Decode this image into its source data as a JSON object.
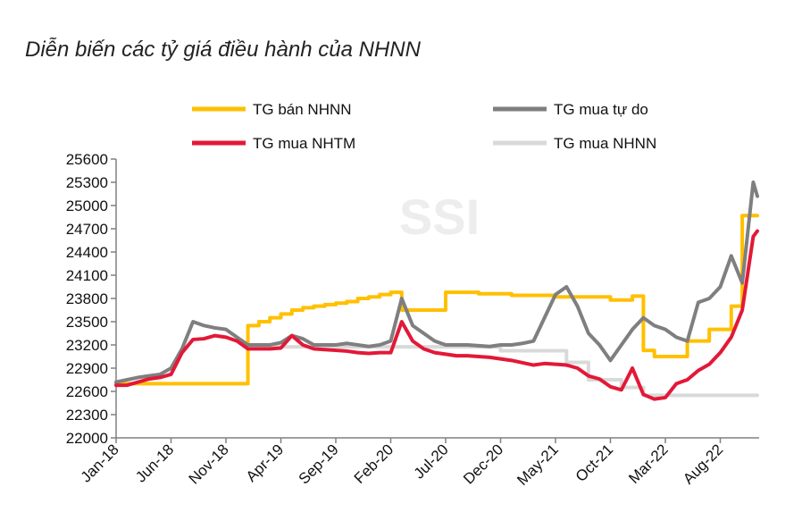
{
  "title": "Diễn biến các tỷ giá điều hành của NHNN",
  "watermark": "SSI",
  "chart_data": {
    "type": "line",
    "title": "Diễn biến các tỷ giá điều hành của NHNN",
    "xlabel": "",
    "ylabel": "",
    "ylim": [
      22000,
      25600
    ],
    "xlim": [
      "2018-01",
      "2022-12"
    ],
    "yticks": [
      "25600",
      "25300",
      "25000",
      "24700",
      "24400",
      "24100",
      "23800",
      "23500",
      "23200",
      "22900",
      "22600",
      "22300",
      "22000"
    ],
    "xticks": [
      {
        "label": "Jan-18",
        "date": "2018-01"
      },
      {
        "label": "Jun-18",
        "date": "2018-06"
      },
      {
        "label": "Nov-18",
        "date": "2018-11"
      },
      {
        "label": "Apr-19",
        "date": "2019-04"
      },
      {
        "label": "Sep-19",
        "date": "2019-09"
      },
      {
        "label": "Feb-20",
        "date": "2020-02"
      },
      {
        "label": "Jul-20",
        "date": "2020-07"
      },
      {
        "label": "Dec-20",
        "date": "2020-12"
      },
      {
        "label": "May-21",
        "date": "2021-05"
      },
      {
        "label": "Oct-21",
        "date": "2021-10"
      },
      {
        "label": "Mar-22",
        "date": "2022-03"
      },
      {
        "label": "Aug-22",
        "date": "2022-08"
      }
    ],
    "grid": false,
    "legend_position": "top",
    "series": [
      {
        "name": "TG bán NHNN",
        "color": "#FFC000",
        "step": true,
        "points": [
          [
            "2018-01",
            22700
          ],
          [
            "2019-01",
            23450
          ],
          [
            "2019-02",
            23500
          ],
          [
            "2019-03",
            23550
          ],
          [
            "2019-04",
            23600
          ],
          [
            "2019-05",
            23650
          ],
          [
            "2019-06",
            23680
          ],
          [
            "2019-07",
            23700
          ],
          [
            "2019-08",
            23720
          ],
          [
            "2019-09",
            23740
          ],
          [
            "2019-10",
            23760
          ],
          [
            "2019-11",
            23800
          ],
          [
            "2019-12",
            23820
          ],
          [
            "2020-01",
            23850
          ],
          [
            "2020-02",
            23880
          ],
          [
            "2020-03",
            23650
          ],
          [
            "2020-07",
            23880
          ],
          [
            "2020-10",
            23860
          ],
          [
            "2021-01",
            23840
          ],
          [
            "2021-05",
            23820
          ],
          [
            "2021-10",
            23780
          ],
          [
            "2021-12",
            23830
          ],
          [
            "2022-01",
            23130
          ],
          [
            "2022-02",
            23050
          ],
          [
            "2022-05",
            23250
          ],
          [
            "2022-07",
            23400
          ],
          [
            "2022-09",
            23700
          ],
          [
            "2022-10",
            24870
          ],
          [
            "2022-12",
            24870
          ]
        ]
      },
      {
        "name": "TG mua tự do",
        "color": "#7F7F7F",
        "step": false,
        "points": [
          [
            "2018-01",
            22720
          ],
          [
            "2018-02",
            22750
          ],
          [
            "2018-03",
            22780
          ],
          [
            "2018-04",
            22800
          ],
          [
            "2018-05",
            22820
          ],
          [
            "2018-06",
            22900
          ],
          [
            "2018-07",
            23150
          ],
          [
            "2018-08",
            23500
          ],
          [
            "2018-09",
            23450
          ],
          [
            "2018-10",
            23420
          ],
          [
            "2018-11",
            23400
          ],
          [
            "2018-12",
            23300
          ],
          [
            "2019-01",
            23200
          ],
          [
            "2019-02",
            23200
          ],
          [
            "2019-03",
            23200
          ],
          [
            "2019-04",
            23230
          ],
          [
            "2019-05",
            23320
          ],
          [
            "2019-06",
            23280
          ],
          [
            "2019-07",
            23200
          ],
          [
            "2019-08",
            23200
          ],
          [
            "2019-09",
            23200
          ],
          [
            "2019-10",
            23220
          ],
          [
            "2019-11",
            23200
          ],
          [
            "2019-12",
            23180
          ],
          [
            "2020-01",
            23200
          ],
          [
            "2020-02",
            23250
          ],
          [
            "2020-03",
            23800
          ],
          [
            "2020-04",
            23450
          ],
          [
            "2020-05",
            23350
          ],
          [
            "2020-06",
            23250
          ],
          [
            "2020-07",
            23200
          ],
          [
            "2020-08",
            23200
          ],
          [
            "2020-09",
            23200
          ],
          [
            "2020-10",
            23190
          ],
          [
            "2020-11",
            23180
          ],
          [
            "2020-12",
            23200
          ],
          [
            "2021-01",
            23200
          ],
          [
            "2021-02",
            23220
          ],
          [
            "2021-03",
            23250
          ],
          [
            "2021-04",
            23550
          ],
          [
            "2021-05",
            23850
          ],
          [
            "2021-06",
            23950
          ],
          [
            "2021-07",
            23700
          ],
          [
            "2021-08",
            23350
          ],
          [
            "2021-09",
            23200
          ],
          [
            "2021-10",
            23000
          ],
          [
            "2021-11",
            23200
          ],
          [
            "2021-12",
            23400
          ],
          [
            "2022-01",
            23550
          ],
          [
            "2022-02",
            23450
          ],
          [
            "2022-03",
            23400
          ],
          [
            "2022-04",
            23300
          ],
          [
            "2022-05",
            23250
          ],
          [
            "2022-06",
            23750
          ],
          [
            "2022-07",
            23800
          ],
          [
            "2022-08",
            23950
          ],
          [
            "2022-09",
            24350
          ],
          [
            "2022-10",
            24000
          ],
          [
            "2022-11",
            25300
          ],
          [
            "2022-12",
            25120
          ]
        ]
      },
      {
        "name": "TG mua NHTM",
        "color": "#E31837",
        "step": false,
        "points": [
          [
            "2018-01",
            22680
          ],
          [
            "2018-02",
            22680
          ],
          [
            "2018-03",
            22720
          ],
          [
            "2018-04",
            22760
          ],
          [
            "2018-05",
            22780
          ],
          [
            "2018-06",
            22820
          ],
          [
            "2018-07",
            23100
          ],
          [
            "2018-08",
            23270
          ],
          [
            "2018-09",
            23280
          ],
          [
            "2018-10",
            23320
          ],
          [
            "2018-11",
            23300
          ],
          [
            "2018-12",
            23250
          ],
          [
            "2019-01",
            23150
          ],
          [
            "2019-02",
            23150
          ],
          [
            "2019-03",
            23150
          ],
          [
            "2019-04",
            23160
          ],
          [
            "2019-05",
            23320
          ],
          [
            "2019-06",
            23200
          ],
          [
            "2019-07",
            23150
          ],
          [
            "2019-08",
            23140
          ],
          [
            "2019-09",
            23130
          ],
          [
            "2019-10",
            23120
          ],
          [
            "2019-11",
            23100
          ],
          [
            "2019-12",
            23090
          ],
          [
            "2020-01",
            23100
          ],
          [
            "2020-02",
            23100
          ],
          [
            "2020-03",
            23500
          ],
          [
            "2020-04",
            23250
          ],
          [
            "2020-05",
            23150
          ],
          [
            "2020-06",
            23100
          ],
          [
            "2020-07",
            23080
          ],
          [
            "2020-08",
            23060
          ],
          [
            "2020-09",
            23060
          ],
          [
            "2020-10",
            23050
          ],
          [
            "2020-11",
            23040
          ],
          [
            "2020-12",
            23020
          ],
          [
            "2021-01",
            23000
          ],
          [
            "2021-02",
            22970
          ],
          [
            "2021-03",
            22940
          ],
          [
            "2021-04",
            22960
          ],
          [
            "2021-05",
            22950
          ],
          [
            "2021-06",
            22940
          ],
          [
            "2021-07",
            22900
          ],
          [
            "2021-08",
            22800
          ],
          [
            "2021-09",
            22760
          ],
          [
            "2021-10",
            22660
          ],
          [
            "2021-11",
            22620
          ],
          [
            "2021-12",
            22900
          ],
          [
            "2022-01",
            22560
          ],
          [
            "2022-02",
            22500
          ],
          [
            "2022-03",
            22520
          ],
          [
            "2022-04",
            22700
          ],
          [
            "2022-05",
            22750
          ],
          [
            "2022-06",
            22870
          ],
          [
            "2022-07",
            22950
          ],
          [
            "2022-08",
            23100
          ],
          [
            "2022-09",
            23300
          ],
          [
            "2022-10",
            23650
          ],
          [
            "2022-11",
            24600
          ],
          [
            "2022-12",
            24670
          ]
        ]
      },
      {
        "name": "TG mua NHNN",
        "color": "#D9D9D9",
        "step": true,
        "points": [
          [
            "2019-01",
            23175
          ],
          [
            "2020-12",
            23125
          ],
          [
            "2021-06",
            22975
          ],
          [
            "2021-08",
            22750
          ],
          [
            "2021-11",
            22650
          ],
          [
            "2022-01",
            22550
          ],
          [
            "2022-12",
            22550
          ]
        ]
      }
    ]
  }
}
